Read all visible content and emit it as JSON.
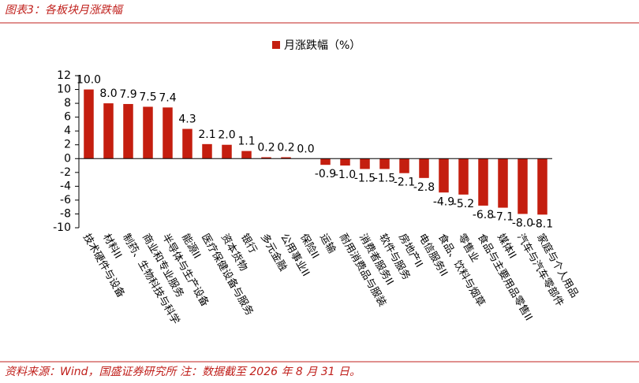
{
  "header": {
    "title": "图表3：各板块月涨跌幅"
  },
  "footer": {
    "source": "资料来源：Wind，国盛证券研究所   注：数据截至 2026 年 8 月 31 日。"
  },
  "chart_data": {
    "type": "bar",
    "categories": [
      "技术硬件与设备",
      "材料II",
      "制药、生物科技与科学",
      "商业和专业服务",
      "半导体与生产设备",
      "能源II",
      "医疗保健设备与服务",
      "资本货物",
      "银行",
      "多元金融",
      "公用事业II",
      "保险II",
      "运输",
      "耐用消费品与服装",
      "消费者服务II",
      "软件与服务",
      "房地产II",
      "电信服务II",
      "食品、饮料与烟草",
      "零售业",
      "食品与主要用品零售II",
      "媒体II",
      "汽车与汽车零部件",
      "家庭与个人用品"
    ],
    "series": [
      {
        "name": "月涨跌幅（%）",
        "color": "#c41e0f",
        "values": [
          10.0,
          8.0,
          7.9,
          7.5,
          7.4,
          4.3,
          2.1,
          2.0,
          1.1,
          0.2,
          0.2,
          0.0,
          -0.9,
          -1.0,
          -1.5,
          -1.5,
          -2.1,
          -2.8,
          -4.9,
          -5.2,
          -6.8,
          -7.1,
          -8.0,
          -8.1
        ],
        "value_labels": [
          "10.0",
          "8.0",
          "7.9",
          "7.5",
          "7.4",
          "4.3",
          "2.1",
          "2.0",
          "1.1",
          "0.2",
          "0.2",
          "0.0",
          "-0.9",
          "-1.0",
          "-1.5",
          "-1.5",
          "-2.1",
          "-2.8",
          "-4.9",
          "-5.2",
          "-6.8",
          "-7.1",
          "-8.0",
          "-8.1"
        ]
      }
    ],
    "ylim": [
      -10,
      12
    ],
    "yticks": [
      -10,
      -8,
      -6,
      -4,
      -2,
      0,
      2,
      4,
      6,
      8,
      10,
      12
    ],
    "legend": "top"
  }
}
